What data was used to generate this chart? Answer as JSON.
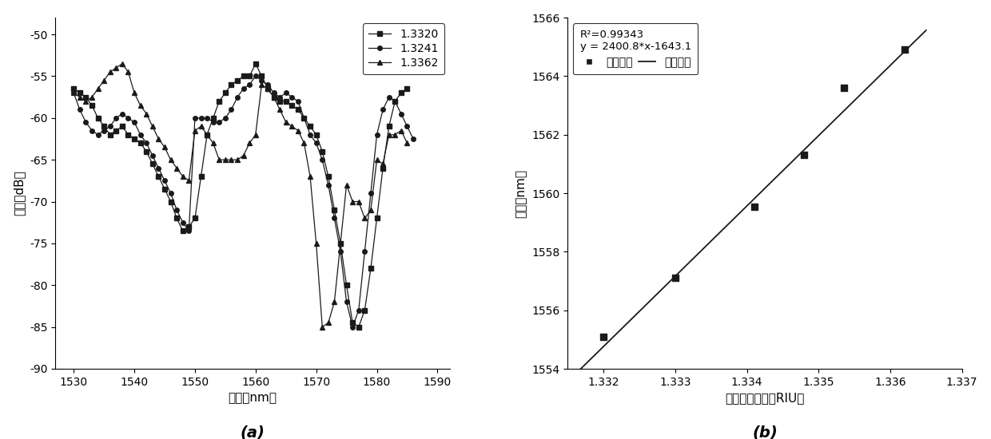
{
  "left_chart": {
    "xlabel": "波长（nm）",
    "ylabel": "传输（dB）",
    "xlim": [
      1527,
      1592
    ],
    "ylim": [
      -90,
      -48
    ],
    "xticks": [
      1530,
      1540,
      1550,
      1560,
      1570,
      1580,
      1590
    ],
    "yticks": [
      -90,
      -85,
      -80,
      -75,
      -70,
      -65,
      -60,
      -55,
      -50
    ],
    "label_a": "(a)",
    "series": [
      {
        "label": "1.3320",
        "marker": "s",
        "x": [
          1530,
          1531,
          1532,
          1533,
          1534,
          1535,
          1536,
          1537,
          1538,
          1539,
          1540,
          1541,
          1542,
          1543,
          1544,
          1545,
          1546,
          1547,
          1548,
          1549,
          1550,
          1551,
          1552,
          1553,
          1554,
          1555,
          1556,
          1557,
          1558,
          1559,
          1560,
          1561,
          1562,
          1563,
          1564,
          1565,
          1566,
          1567,
          1568,
          1569,
          1570,
          1571,
          1572,
          1573,
          1574,
          1575,
          1576,
          1577,
          1578,
          1579,
          1580,
          1581,
          1582,
          1583,
          1584,
          1585
        ],
        "y": [
          -56.5,
          -57,
          -57.5,
          -58.5,
          -60,
          -61,
          -62,
          -61.5,
          -61,
          -62,
          -62.5,
          -63,
          -64,
          -65.5,
          -67,
          -68.5,
          -70,
          -72,
          -73.5,
          -73,
          -72,
          -67,
          -62,
          -60,
          -58,
          -57,
          -56,
          -55.5,
          -55,
          -55,
          -53.5,
          -55,
          -56.5,
          -57.5,
          -58,
          -58,
          -58.5,
          -59,
          -60,
          -61,
          -62,
          -64,
          -67,
          -71,
          -75,
          -80,
          -84.5,
          -85,
          -83,
          -78,
          -72,
          -66,
          -61,
          -58,
          -57,
          -56.5
        ]
      },
      {
        "label": "1.3241",
        "marker": "o",
        "x": [
          1530,
          1531,
          1532,
          1533,
          1534,
          1535,
          1536,
          1537,
          1538,
          1539,
          1540,
          1541,
          1542,
          1543,
          1544,
          1545,
          1546,
          1547,
          1548,
          1549,
          1550,
          1551,
          1552,
          1553,
          1554,
          1555,
          1556,
          1557,
          1558,
          1559,
          1560,
          1561,
          1562,
          1563,
          1564,
          1565,
          1566,
          1567,
          1568,
          1569,
          1570,
          1571,
          1572,
          1573,
          1574,
          1575,
          1576,
          1577,
          1578,
          1579,
          1580,
          1581,
          1582,
          1583,
          1584,
          1585,
          1586
        ],
        "y": [
          -57,
          -59,
          -60.5,
          -61.5,
          -62,
          -61.5,
          -61,
          -60,
          -59.5,
          -60,
          -60.5,
          -62,
          -63,
          -64.5,
          -66,
          -67.5,
          -69,
          -71,
          -72.5,
          -73.5,
          -60,
          -60,
          -60,
          -60.5,
          -60.5,
          -60,
          -59,
          -57.5,
          -56.5,
          -56,
          -55,
          -55.5,
          -56,
          -57,
          -57.5,
          -57,
          -57.5,
          -58,
          -60,
          -62,
          -63,
          -65,
          -68,
          -72,
          -76,
          -82,
          -85,
          -83,
          -76,
          -69,
          -62,
          -59,
          -57.5,
          -58,
          -59.5,
          -61,
          -62.5
        ]
      },
      {
        "label": "1.3362",
        "marker": "^",
        "x": [
          1530,
          1531,
          1532,
          1533,
          1534,
          1535,
          1536,
          1537,
          1538,
          1539,
          1540,
          1541,
          1542,
          1543,
          1544,
          1545,
          1546,
          1547,
          1548,
          1549,
          1550,
          1551,
          1552,
          1553,
          1554,
          1555,
          1556,
          1557,
          1558,
          1559,
          1560,
          1561,
          1562,
          1563,
          1564,
          1565,
          1566,
          1567,
          1568,
          1569,
          1570,
          1571,
          1572,
          1573,
          1574,
          1575,
          1576,
          1577,
          1578,
          1579,
          1580,
          1581,
          1582,
          1583,
          1584,
          1585
        ],
        "y": [
          -57,
          -57.5,
          -58,
          -57.5,
          -56.5,
          -55.5,
          -54.5,
          -54,
          -53.5,
          -54.5,
          -57,
          -58.5,
          -59.5,
          -61,
          -62.5,
          -63.5,
          -65,
          -66,
          -67,
          -67.5,
          -61.5,
          -61,
          -62,
          -63,
          -65,
          -65,
          -65,
          -65,
          -64.5,
          -63,
          -62,
          -56,
          -56.5,
          -57.5,
          -59,
          -60.5,
          -61,
          -61.5,
          -63,
          -67,
          -75,
          -85,
          -84.5,
          -82,
          -75,
          -68,
          -70,
          -70,
          -72,
          -71,
          -65,
          -65.5,
          -62,
          -62,
          -61.5,
          -63
        ]
      }
    ]
  },
  "right_chart": {
    "xlabel": "测量物折射率（RIU）",
    "ylabel": "波长（nm）",
    "xlim": [
      1.3315,
      1.337
    ],
    "ylim": [
      1554,
      1566
    ],
    "xticks": [
      1.332,
      1.333,
      1.334,
      1.335,
      1.336,
      1.337
    ],
    "yticks": [
      1554,
      1556,
      1558,
      1560,
      1562,
      1564,
      1566
    ],
    "label_b": "(b)",
    "annotation_line1": "R²=0.99343",
    "annotation_line2": "y = 2400.8*x-1643.1",
    "legend_data_label": "测量数据",
    "legend_fit_label": "线性拟合",
    "data_x": [
      1.332,
      1.333,
      1.3341,
      1.3348,
      1.33535,
      1.3362
    ],
    "data_y": [
      1555.1,
      1557.1,
      1559.55,
      1561.3,
      1563.6,
      1564.9
    ],
    "slope": 2400.8,
    "intercept": -1643.1,
    "fit_x_start": 1.3316,
    "fit_x_end": 1.3365
  },
  "line_color": "#1a1a1a",
  "font_size": 11
}
